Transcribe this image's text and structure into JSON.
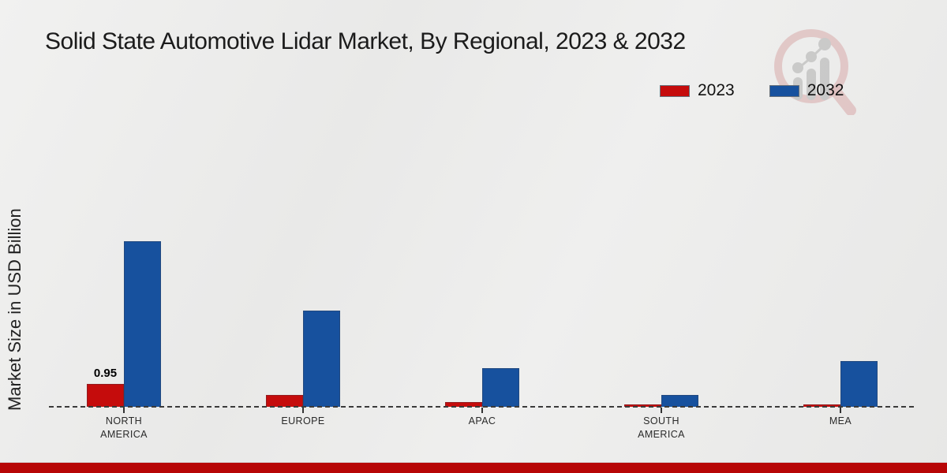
{
  "title": "Solid State Automotive Lidar Market, By Regional, 2023 & 2032",
  "ylabel": "Market Size in USD Billion",
  "legend": [
    {
      "label": "2023",
      "color": "#c50c0c"
    },
    {
      "label": "2032",
      "color": "#17519e"
    }
  ],
  "chart_data": {
    "type": "bar",
    "title": "Solid State Automotive Lidar Market, By Regional, 2023 & 2032",
    "categories": [
      "NORTH AMERICA",
      "EUROPE",
      "APAC",
      "SOUTH AMERICA",
      "MEA"
    ],
    "series": [
      {
        "name": "2023",
        "color": "#c50c0c",
        "values": [
          0.95,
          0.5,
          0.2,
          0.1,
          0.1
        ]
      },
      {
        "name": "2032",
        "color": "#17519e",
        "values": [
          6.9,
          4.0,
          1.6,
          0.5,
          1.9
        ]
      }
    ],
    "data_labels": [
      {
        "category_index": 0,
        "series_index": 0,
        "text": "0.95"
      }
    ],
    "xlabel": "",
    "ylabel": "Market Size in USD Billion",
    "ylim": [
      0,
      7.5
    ],
    "y_axis_ticks_visible": false,
    "baseline_style": "dashed",
    "grid": false,
    "legend_position": "top-right"
  },
  "colors": {
    "series_2023": "#c50c0c",
    "series_2032": "#17519e",
    "footer_bar": "#b70606",
    "background": "#ebebea"
  },
  "watermark": {
    "name": "bar-chart-magnifier-logo"
  }
}
